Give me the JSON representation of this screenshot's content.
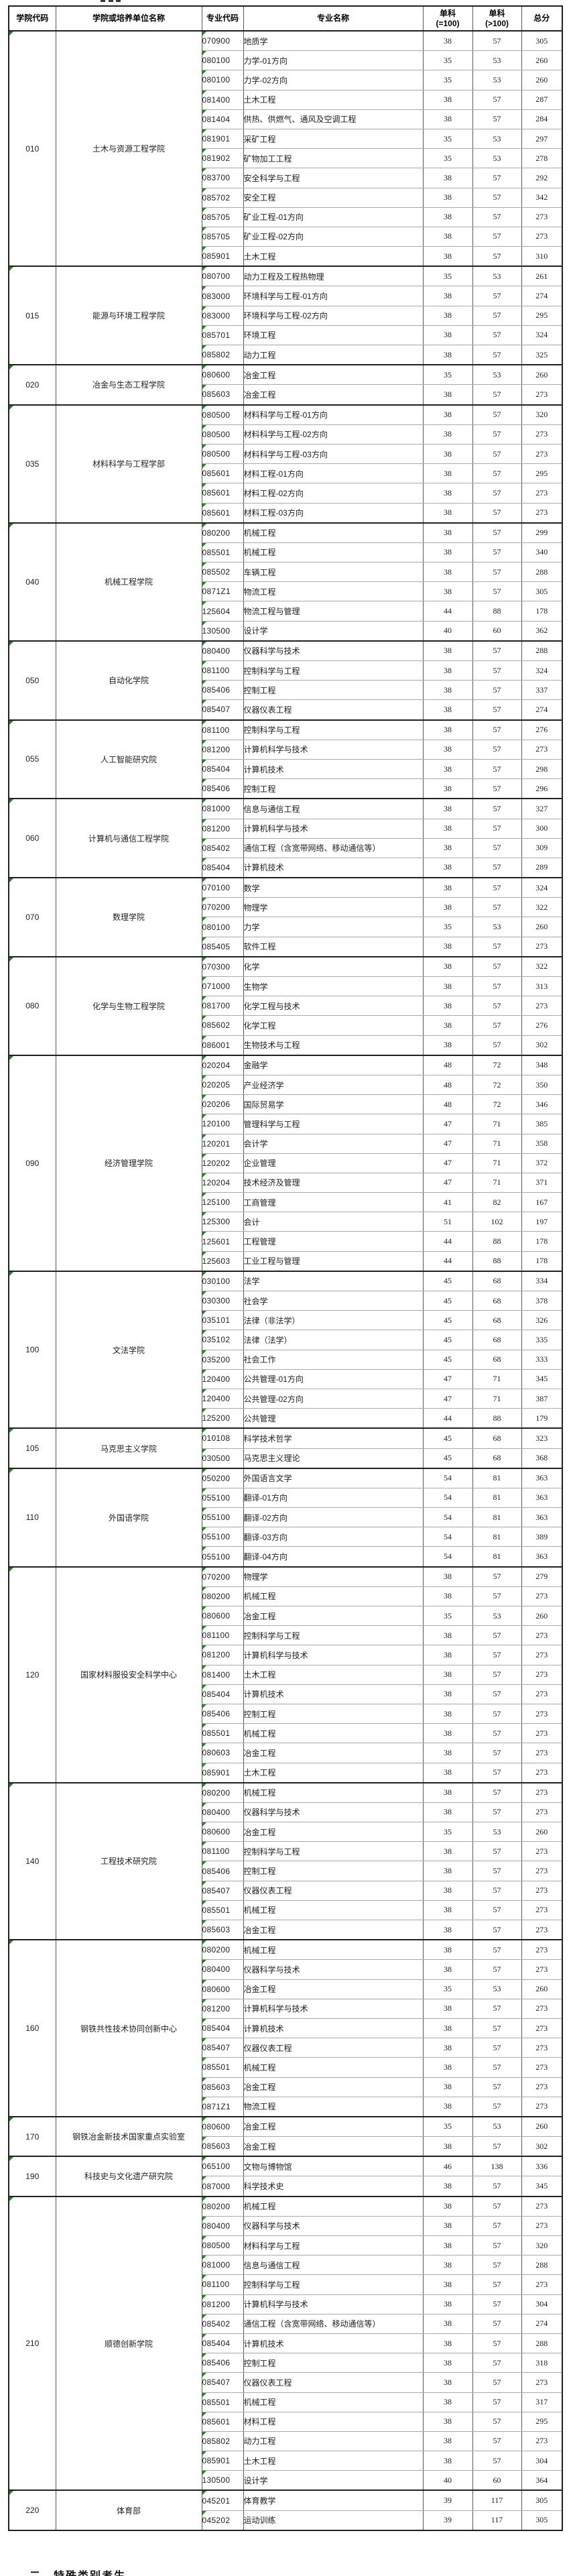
{
  "colors": {
    "group_border": "#212121",
    "row_border": "#ababab",
    "col_border": "#5a5a5a",
    "flag_green": "#317c31",
    "text": "#1f1f1f"
  },
  "footer": {
    "partial_heading": "二、特殊类别考生"
  },
  "table": {
    "columns": [
      {
        "key": "college_code",
        "label": "学院代码"
      },
      {
        "key": "college_name",
        "label": "学院或培养单位名称"
      },
      {
        "key": "major_code",
        "label": "专业代码"
      },
      {
        "key": "major_name",
        "label": "专业名称"
      },
      {
        "key": "single_eq100",
        "label": "单科\n(=100)"
      },
      {
        "key": "single_gt100",
        "label": "单科\n(>100)"
      },
      {
        "key": "total",
        "label": "总分"
      }
    ],
    "colleges": [
      {
        "code": "010",
        "name": "土木与资源工程学院",
        "majors": [
          [
            "070900",
            "地质学",
            38,
            57,
            305
          ],
          [
            "080100",
            "力学-01方向",
            35,
            53,
            260
          ],
          [
            "080100",
            "力学-02方向",
            35,
            53,
            260
          ],
          [
            "081400",
            "土木工程",
            38,
            57,
            287
          ],
          [
            "081404",
            "供热、供燃气、通风及空调工程",
            38,
            57,
            284
          ],
          [
            "081901",
            "采矿工程",
            35,
            53,
            297
          ],
          [
            "081902",
            "矿物加工工程",
            35,
            53,
            278
          ],
          [
            "083700",
            "安全科学与工程",
            38,
            57,
            292
          ],
          [
            "085702",
            "安全工程",
            38,
            57,
            342
          ],
          [
            "085705",
            "矿业工程-01方向",
            38,
            57,
            273
          ],
          [
            "085705",
            "矿业工程-02方向",
            38,
            57,
            273
          ],
          [
            "085901",
            "土木工程",
            38,
            57,
            310
          ]
        ]
      },
      {
        "code": "015",
        "name": "能源与环境工程学院",
        "majors": [
          [
            "080700",
            "动力工程及工程热物理",
            35,
            53,
            261
          ],
          [
            "083000",
            "环境科学与工程-01方向",
            38,
            57,
            274
          ],
          [
            "083000",
            "环境科学与工程-02方向",
            38,
            57,
            295
          ],
          [
            "085701",
            "环境工程",
            38,
            57,
            324
          ],
          [
            "085802",
            "动力工程",
            38,
            57,
            325
          ]
        ]
      },
      {
        "code": "020",
        "name": "冶金与生态工程学院",
        "majors": [
          [
            "080600",
            "冶金工程",
            35,
            53,
            260
          ],
          [
            "085603",
            "冶金工程",
            38,
            57,
            273
          ]
        ]
      },
      {
        "code": "035",
        "name": "材料科学与工程学部",
        "majors": [
          [
            "080500",
            "材料科学与工程-01方向",
            38,
            57,
            320
          ],
          [
            "080500",
            "材料科学与工程-02方向",
            38,
            57,
            273
          ],
          [
            "080500",
            "材料科学与工程-03方向",
            38,
            57,
            273
          ],
          [
            "085601",
            "材料工程-01方向",
            38,
            57,
            295
          ],
          [
            "085601",
            "材料工程-02方向",
            38,
            57,
            273
          ],
          [
            "085601",
            "材料工程-03方向",
            38,
            57,
            273
          ]
        ]
      },
      {
        "code": "040",
        "name": "机械工程学院",
        "majors": [
          [
            "080200",
            "机械工程",
            38,
            57,
            299
          ],
          [
            "085501",
            "机械工程",
            38,
            57,
            340
          ],
          [
            "085502",
            "车辆工程",
            38,
            57,
            288
          ],
          [
            "0871Z1",
            "物流工程",
            38,
            57,
            305
          ],
          [
            "125604",
            "物流工程与管理",
            44,
            88,
            178
          ],
          [
            "130500",
            "设计学",
            40,
            60,
            362
          ]
        ]
      },
      {
        "code": "050",
        "name": "自动化学院",
        "majors": [
          [
            "080400",
            "仪器科学与技术",
            38,
            57,
            288
          ],
          [
            "081100",
            "控制科学与工程",
            38,
            57,
            324
          ],
          [
            "085406",
            "控制工程",
            38,
            57,
            337
          ],
          [
            "085407",
            "仪器仪表工程",
            38,
            57,
            274
          ]
        ]
      },
      {
        "code": "055",
        "name": "人工智能研究院",
        "majors": [
          [
            "081100",
            "控制科学与工程",
            38,
            57,
            276
          ],
          [
            "081200",
            "计算机科学与技术",
            38,
            57,
            273
          ],
          [
            "085404",
            "计算机技术",
            38,
            57,
            298
          ],
          [
            "085406",
            "控制工程",
            38,
            57,
            296
          ]
        ]
      },
      {
        "code": "060",
        "name": "计算机与通信工程学院",
        "majors": [
          [
            "081000",
            "信息与通信工程",
            38,
            57,
            327
          ],
          [
            "081200",
            "计算机科学与技术",
            38,
            57,
            300
          ],
          [
            "085402",
            "通信工程（含宽带网络、移动通信等）",
            38,
            57,
            309
          ],
          [
            "085404",
            "计算机技术",
            38,
            57,
            289
          ]
        ]
      },
      {
        "code": "070",
        "name": "数理学院",
        "majors": [
          [
            "070100",
            "数学",
            38,
            57,
            324
          ],
          [
            "070200",
            "物理学",
            38,
            57,
            322
          ],
          [
            "080100",
            "力学",
            35,
            53,
            260
          ],
          [
            "085405",
            "软件工程",
            38,
            57,
            273
          ]
        ]
      },
      {
        "code": "080",
        "name": "化学与生物工程学院",
        "majors": [
          [
            "070300",
            "化学",
            38,
            57,
            322
          ],
          [
            "071000",
            "生物学",
            38,
            57,
            313
          ],
          [
            "081700",
            "化学工程与技术",
            38,
            57,
            273
          ],
          [
            "085602",
            "化学工程",
            38,
            57,
            276
          ],
          [
            "086001",
            "生物技术与工程",
            38,
            57,
            302
          ]
        ]
      },
      {
        "code": "090",
        "name": "经济管理学院",
        "majors": [
          [
            "020204",
            "金融学",
            48,
            72,
            348
          ],
          [
            "020205",
            "产业经济学",
            48,
            72,
            350
          ],
          [
            "020206",
            "国际贸易学",
            48,
            72,
            346
          ],
          [
            "120100",
            "管理科学与工程",
            47,
            71,
            385
          ],
          [
            "120201",
            "会计学",
            47,
            71,
            358
          ],
          [
            "120202",
            "企业管理",
            47,
            71,
            372
          ],
          [
            "120204",
            "技术经济及管理",
            47,
            71,
            371
          ],
          [
            "125100",
            "工商管理",
            41,
            82,
            167
          ],
          [
            "125300",
            "会计",
            51,
            102,
            197
          ],
          [
            "125601",
            "工程管理",
            44,
            88,
            178
          ],
          [
            "125603",
            "工业工程与管理",
            44,
            88,
            178
          ]
        ]
      },
      {
        "code": "100",
        "name": "文法学院",
        "majors": [
          [
            "030100",
            "法学",
            45,
            68,
            334
          ],
          [
            "030300",
            "社会学",
            45,
            68,
            378
          ],
          [
            "035101",
            "法律（非法学）",
            45,
            68,
            326
          ],
          [
            "035102",
            "法律（法学）",
            45,
            68,
            335
          ],
          [
            "035200",
            "社会工作",
            45,
            68,
            333
          ],
          [
            "120400",
            "公共管理-01方向",
            47,
            71,
            345
          ],
          [
            "120400",
            "公共管理-02方向",
            47,
            71,
            387
          ],
          [
            "125200",
            "公共管理",
            44,
            88,
            179
          ]
        ]
      },
      {
        "code": "105",
        "name": "马克思主义学院",
        "majors": [
          [
            "010108",
            "科学技术哲学",
            45,
            68,
            323
          ],
          [
            "030500",
            "马克思主义理论",
            45,
            68,
            368
          ]
        ]
      },
      {
        "code": "110",
        "name": "外国语学院",
        "majors": [
          [
            "050200",
            "外国语言文学",
            54,
            81,
            363
          ],
          [
            "055100",
            "翻译-01方向",
            54,
            81,
            363
          ],
          [
            "055100",
            "翻译-02方向",
            54,
            81,
            363
          ],
          [
            "055100",
            "翻译-03方向",
            54,
            81,
            389
          ],
          [
            "055100",
            "翻译-04方向",
            54,
            81,
            363
          ]
        ]
      },
      {
        "code": "120",
        "name": "国家材料服役安全科学中心",
        "majors": [
          [
            "070200",
            "物理学",
            38,
            57,
            279
          ],
          [
            "080200",
            "机械工程",
            38,
            57,
            273
          ],
          [
            "080600",
            "冶金工程",
            35,
            53,
            260
          ],
          [
            "081100",
            "控制科学与工程",
            38,
            57,
            273
          ],
          [
            "081200",
            "计算机科学与技术",
            38,
            57,
            273
          ],
          [
            "081400",
            "土木工程",
            38,
            57,
            273
          ],
          [
            "085404",
            "计算机技术",
            38,
            57,
            273
          ],
          [
            "085406",
            "控制工程",
            38,
            57,
            273
          ],
          [
            "085501",
            "机械工程",
            38,
            57,
            273
          ],
          [
            "080603",
            "冶金工程",
            38,
            57,
            273
          ],
          [
            "085901",
            "土木工程",
            38,
            57,
            273
          ]
        ]
      },
      {
        "code": "140",
        "name": "工程技术研究院",
        "majors": [
          [
            "080200",
            "机械工程",
            38,
            57,
            273
          ],
          [
            "080400",
            "仪器科学与技术",
            38,
            57,
            273
          ],
          [
            "080600",
            "冶金工程",
            35,
            53,
            260
          ],
          [
            "081100",
            "控制科学与工程",
            38,
            57,
            273
          ],
          [
            "085406",
            "控制工程",
            38,
            57,
            273
          ],
          [
            "085407",
            "仪器仪表工程",
            38,
            57,
            273
          ],
          [
            "085501",
            "机械工程",
            38,
            57,
            273
          ],
          [
            "085603",
            "冶金工程",
            38,
            57,
            273
          ]
        ]
      },
      {
        "code": "160",
        "name": "钢铁共性技术协同创新中心",
        "majors": [
          [
            "080200",
            "机械工程",
            38,
            57,
            273
          ],
          [
            "080400",
            "仪器科学与技术",
            38,
            57,
            273
          ],
          [
            "080600",
            "冶金工程",
            35,
            53,
            260
          ],
          [
            "081200",
            "计算机科学与技术",
            38,
            57,
            273
          ],
          [
            "085404",
            "计算机技术",
            38,
            57,
            273
          ],
          [
            "085407",
            "仪器仪表工程",
            38,
            57,
            273
          ],
          [
            "085501",
            "机械工程",
            38,
            57,
            273
          ],
          [
            "085603",
            "冶金工程",
            38,
            57,
            273
          ],
          [
            "0871Z1",
            "物流工程",
            38,
            57,
            273
          ]
        ]
      },
      {
        "code": "170",
        "name": "钢铁冶金新技术国家重点实验室",
        "majors": [
          [
            "080600",
            "冶金工程",
            35,
            53,
            260
          ],
          [
            "085603",
            "冶金工程",
            38,
            57,
            302
          ]
        ]
      },
      {
        "code": "190",
        "name": "科技史与文化遗产研究院",
        "majors": [
          [
            "065100",
            "文物与博物馆",
            46,
            138,
            336
          ],
          [
            "087000",
            "科学技术史",
            38,
            57,
            345
          ]
        ]
      },
      {
        "code": "210",
        "name": "顺德创新学院",
        "majors": [
          [
            "080200",
            "机械工程",
            38,
            57,
            273
          ],
          [
            "080400",
            "仪器科学与技术",
            38,
            57,
            273
          ],
          [
            "080500",
            "材料科学与工程",
            38,
            57,
            320
          ],
          [
            "081000",
            "信息与通信工程",
            38,
            57,
            288
          ],
          [
            "081100",
            "控制科学与工程",
            38,
            57,
            273
          ],
          [
            "081200",
            "计算机科学与技术",
            38,
            57,
            304
          ],
          [
            "085402",
            "通信工程（含宽带网络、移动通信等）",
            38,
            57,
            274
          ],
          [
            "085404",
            "计算机技术",
            38,
            57,
            288
          ],
          [
            "085406",
            "控制工程",
            38,
            57,
            318
          ],
          [
            "085407",
            "仪器仪表工程",
            38,
            57,
            273
          ],
          [
            "085501",
            "机械工程",
            38,
            57,
            317
          ],
          [
            "085601",
            "材料工程",
            38,
            57,
            295
          ],
          [
            "085802",
            "动力工程",
            38,
            57,
            273
          ],
          [
            "085901",
            "土木工程",
            38,
            57,
            304
          ],
          [
            "130500",
            "设计学",
            40,
            60,
            364
          ]
        ]
      },
      {
        "code": "220",
        "name": "体育部",
        "majors": [
          [
            "045201",
            "体育教学",
            39,
            117,
            305
          ],
          [
            "045202",
            "运动训练",
            39,
            117,
            305
          ]
        ]
      }
    ]
  }
}
